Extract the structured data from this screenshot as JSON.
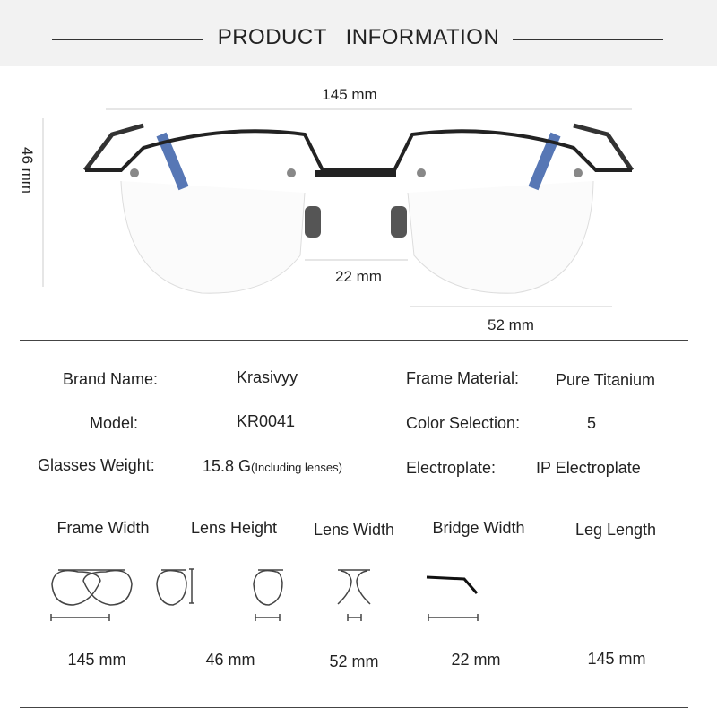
{
  "header": {
    "title": "PRODUCT  INFORMATION"
  },
  "photo": {
    "total_width": "145 mm",
    "lens_height": "46 mm",
    "bridge": "22 mm",
    "lens_width": "52 mm",
    "lens_tint": "#3a5fa8"
  },
  "specs": [
    {
      "label": "Brand Name:",
      "value": "Krasivyy"
    },
    {
      "label": "Frame Material:",
      "value": "Pure Titanium"
    },
    {
      "label": "Model:",
      "value": "KR0041"
    },
    {
      "label": "Color Selection:",
      "value": "5"
    },
    {
      "label": "Glasses Weight:",
      "value": "15.8 G",
      "note": "(Including lenses)"
    },
    {
      "label": "Electroplate:",
      "value": "IP Electroplate"
    }
  ],
  "measures": [
    {
      "label": "Frame Width",
      "value": "145 mm",
      "icon": "frame-width-icon"
    },
    {
      "label": "Lens Height",
      "value": "46 mm",
      "icon": "lens-height-icon"
    },
    {
      "label": "Lens Width",
      "value": "52 mm",
      "icon": "lens-width-icon"
    },
    {
      "label": "Bridge Width",
      "value": "22 mm",
      "icon": "bridge-width-icon"
    },
    {
      "label": "Leg Length",
      "value": "145 mm",
      "icon": "leg-length-icon"
    }
  ]
}
